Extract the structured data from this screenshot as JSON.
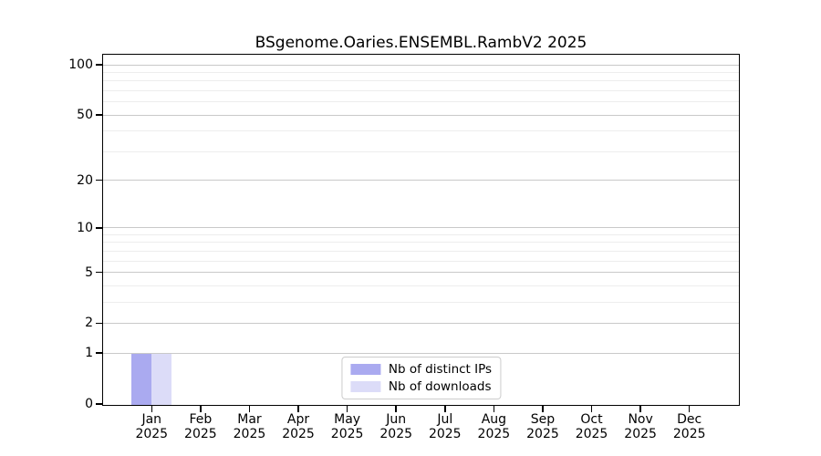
{
  "chart_data": {
    "type": "bar",
    "title": "BSgenome.Oaries.ENSEMBL.RambV2 2025",
    "categories": [
      "Jan 2025",
      "Feb 2025",
      "Mar 2025",
      "Apr 2025",
      "May 2025",
      "Jun 2025",
      "Jul 2025",
      "Aug 2025",
      "Sep 2025",
      "Oct 2025",
      "Nov 2025",
      "Dec 2025"
    ],
    "series": [
      {
        "name": "Nb of distinct IPs",
        "color": "#aaaaf0",
        "values": [
          1,
          0,
          0,
          0,
          0,
          0,
          0,
          0,
          0,
          0,
          0,
          0
        ]
      },
      {
        "name": "Nb of downloads",
        "color": "#dcdcf8",
        "values": [
          1,
          0,
          0,
          0,
          0,
          0,
          0,
          0,
          0,
          0,
          0,
          0
        ]
      }
    ],
    "xlabel": "",
    "ylabel": "",
    "y_scale": "log1p",
    "y_ticks": [
      0,
      1,
      2,
      5,
      10,
      20,
      50,
      100
    ],
    "y_minor_gridlines": [
      3,
      4,
      6,
      7,
      8,
      9,
      30,
      40,
      60,
      70,
      80,
      90
    ],
    "ylim": [
      0,
      115
    ],
    "grid": "horizontal-only",
    "legend_position": "bottom-center-inside"
  }
}
